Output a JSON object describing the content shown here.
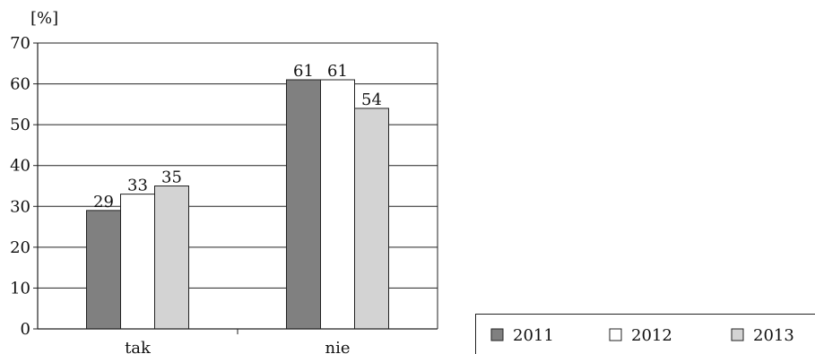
{
  "chart_data": {
    "type": "bar",
    "title": "",
    "xlabel": "",
    "ylabel": "[%]",
    "ylim": [
      0,
      70
    ],
    "yticks": [
      0,
      10,
      20,
      30,
      40,
      50,
      60,
      70
    ],
    "categories": [
      "tak",
      "nie"
    ],
    "series": [
      {
        "name": "2011",
        "values": [
          29,
          61
        ],
        "color": "#808080"
      },
      {
        "name": "2012",
        "values": [
          33,
          61
        ],
        "color": "#ffffff"
      },
      {
        "name": "2013",
        "values": [
          35,
          54
        ],
        "color": "#d3d3d3"
      }
    ],
    "grid": true,
    "legend_position": "bottom-right"
  }
}
